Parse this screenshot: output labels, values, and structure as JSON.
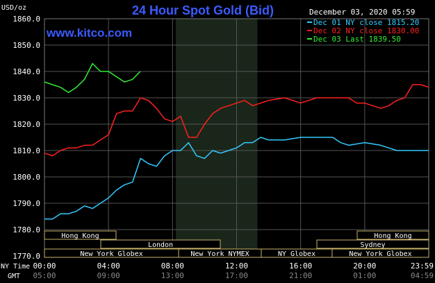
{
  "header": {
    "title": "24 Hour Spot Gold (Bid)",
    "date_time": "December 03, 2020 05:59",
    "unit_label": "USD/oz",
    "site": "www.kitco.com"
  },
  "legend": [
    {
      "label": "Dec 01 NY close 1815.20",
      "color": "#33ccff"
    },
    {
      "label": "Dec 02 NY close 1830.00",
      "color": "#ff2020"
    },
    {
      "label": "Dec 03 Last 1839.50",
      "color": "#33ee33"
    }
  ],
  "axis_labels": {
    "ny_time": "NY Time",
    "gmt": "GMT"
  },
  "sessions": {
    "hong_kong_left": "Hong Kong",
    "london": "London",
    "new_york_globex_left": "New York Globex",
    "new_york_nymex": "New York NYMEX",
    "ny_globex": "NY Globex",
    "new_york_globex_right": "New York Globex",
    "sydney": "Sydney",
    "hong_kong_right": "Hong Kong"
  },
  "chart_data": {
    "type": "line",
    "title": "24 Hour Spot Gold (Bid)",
    "ylabel": "USD/oz",
    "ylim": [
      1770,
      1860
    ],
    "xlim": [
      0,
      24
    ],
    "x_unit": "hours (NY Time)",
    "grid": true,
    "legend_position": "top-right",
    "y_ticks": [
      "1860.0",
      "1850.0",
      "1840.0",
      "1830.0",
      "1820.0",
      "1810.0",
      "1800.0",
      "1790.0",
      "1780.0",
      "1770.0"
    ],
    "x_ticks_ny": [
      "00:00",
      "04:00",
      "08:00",
      "12:00",
      "16:00",
      "20:00",
      "23:59"
    ],
    "x_ticks_gmt": [
      "05:00",
      "09:00",
      "13:00",
      "17:00",
      "21:00",
      "01:00",
      "04:59"
    ],
    "series": [
      {
        "name": "Dec 01 NY close 1815.20",
        "color": "#33ccff",
        "x": [
          0,
          0.5,
          1,
          1.5,
          2,
          2.5,
          3,
          3.5,
          4,
          4.5,
          5,
          5.5,
          6,
          6.5,
          7,
          7.5,
          8,
          8.5,
          9,
          9.5,
          10,
          10.5,
          11,
          11.5,
          12,
          12.5,
          13,
          13.5,
          14,
          15,
          16,
          17,
          18,
          18.5,
          19,
          20,
          21,
          21.5,
          22,
          23,
          24
        ],
        "values": [
          1784,
          1784,
          1786,
          1786,
          1787,
          1789,
          1788,
          1790,
          1792,
          1795,
          1797,
          1798,
          1807,
          1805,
          1804,
          1808,
          1810,
          1810,
          1813,
          1808,
          1807,
          1810,
          1809,
          1810,
          1811,
          1813,
          1813,
          1815,
          1814,
          1814,
          1815,
          1815,
          1815,
          1813,
          1812,
          1813,
          1812,
          1811,
          1810,
          1810,
          1810
        ]
      },
      {
        "name": "Dec 02 NY close 1830.00",
        "color": "#ff2020",
        "x": [
          0,
          0.5,
          1,
          1.5,
          2,
          2.5,
          3,
          3.5,
          4,
          4.5,
          5,
          5.5,
          6,
          6.5,
          7,
          7.5,
          8,
          8.5,
          9,
          9.5,
          10,
          10.5,
          11,
          11.5,
          12,
          12.5,
          13,
          13.5,
          14,
          15,
          16,
          17,
          18,
          18.5,
          19,
          19.5,
          20,
          20.5,
          21,
          21.5,
          22,
          22.5,
          23,
          23.5,
          24
        ],
        "values": [
          1809,
          1808,
          1810,
          1811,
          1811,
          1812,
          1812,
          1814,
          1816,
          1824,
          1825,
          1825,
          1830,
          1829,
          1826,
          1822,
          1821,
          1823,
          1815,
          1815,
          1820,
          1824,
          1826,
          1827,
          1828,
          1829,
          1827,
          1828,
          1829,
          1830,
          1828,
          1830,
          1830,
          1830,
          1830,
          1828,
          1828,
          1827,
          1826,
          1827,
          1829,
          1830,
          1835,
          1835,
          1834
        ]
      },
      {
        "name": "Dec 03 Last 1839.50",
        "color": "#33ee33",
        "x": [
          0,
          0.5,
          1,
          1.5,
          2,
          2.5,
          3,
          3.5,
          4,
          4.5,
          5,
          5.5,
          5.98
        ],
        "values": [
          1836,
          1835,
          1834,
          1832,
          1834,
          1837,
          1843,
          1840,
          1840,
          1838,
          1836,
          1837,
          1840
        ]
      }
    ]
  }
}
